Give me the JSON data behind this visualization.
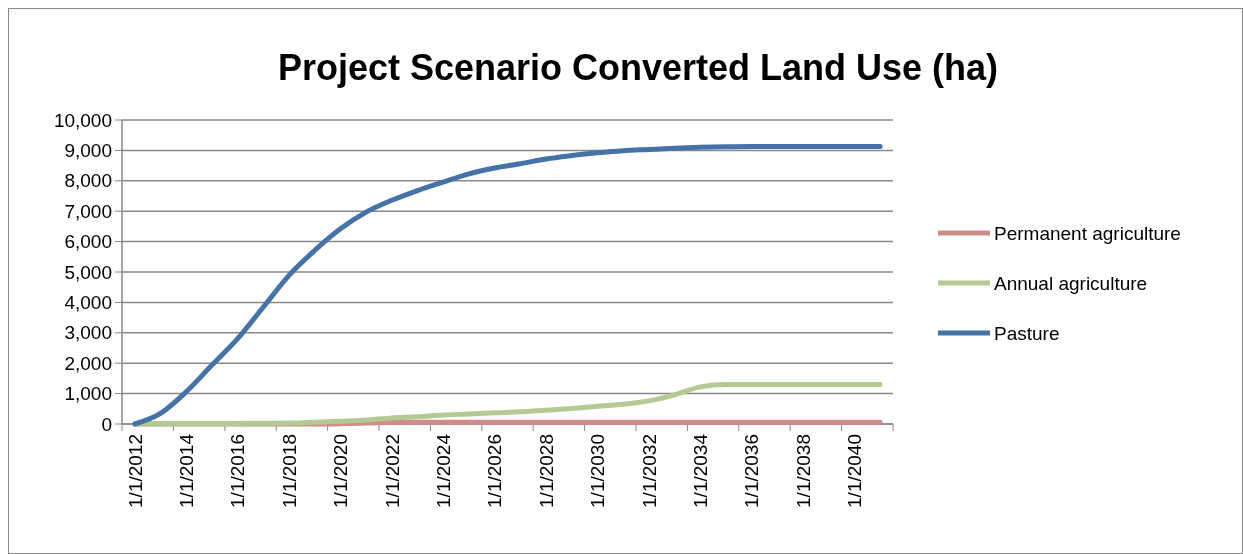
{
  "chart_data": {
    "type": "line",
    "title": "Project Scenario Converted Land Use (ha)",
    "categories": [
      "1/1/2012",
      null,
      "1/1/2014",
      null,
      "1/1/2016",
      null,
      "1/1/2018",
      null,
      "1/1/2020",
      null,
      "1/1/2022",
      null,
      "1/1/2024",
      null,
      "1/1/2026",
      null,
      "1/1/2028",
      null,
      "1/1/2030",
      null,
      "1/1/2032",
      null,
      "1/1/2034",
      null,
      "1/1/2036",
      null,
      "1/1/2038",
      null,
      "1/1/2040",
      null
    ],
    "series": [
      {
        "name": "Permanent agriculture",
        "color": "#d08b8b",
        "values": [
          0,
          0,
          0,
          0,
          0,
          0,
          0,
          0,
          10,
          30,
          50,
          60,
          60,
          60,
          60,
          60,
          60,
          60,
          60,
          60,
          60,
          60,
          60,
          60,
          60,
          60,
          60,
          60,
          60,
          60
        ]
      },
      {
        "name": "Annual agriculture",
        "color": "#b3cb92",
        "values": [
          0,
          10,
          15,
          20,
          20,
          25,
          30,
          55,
          90,
          130,
          200,
          240,
          295,
          330,
          370,
          400,
          455,
          510,
          585,
          650,
          760,
          960,
          1220,
          1300,
          1300,
          1300,
          1300,
          1300,
          1300,
          1300
        ]
      },
      {
        "name": "Pasture",
        "color": "#4572a7",
        "values": [
          0,
          350,
          1060,
          1940,
          2810,
          3850,
          4890,
          5710,
          6420,
          6970,
          7360,
          7680,
          7960,
          8230,
          8420,
          8560,
          8720,
          8830,
          8920,
          8990,
          9030,
          9070,
          9100,
          9120,
          9130,
          9130,
          9130,
          9130,
          9130,
          9130
        ]
      }
    ],
    "ylim": [
      0,
      10000
    ],
    "yticks": [
      {
        "value": 0,
        "label": "0"
      },
      {
        "value": 1000,
        "label": "1,000"
      },
      {
        "value": 2000,
        "label": "2,000"
      },
      {
        "value": 3000,
        "label": "3,000"
      },
      {
        "value": 4000,
        "label": "4,000"
      },
      {
        "value": 5000,
        "label": "5,000"
      },
      {
        "value": 6000,
        "label": "6,000"
      },
      {
        "value": 7000,
        "label": "7,000"
      },
      {
        "value": 8000,
        "label": "8,000"
      },
      {
        "value": 9000,
        "label": "9,000"
      },
      {
        "value": 10000,
        "label": "10,000"
      }
    ],
    "grid": "y",
    "legend": "right",
    "marker": "none",
    "line_style": "solid"
  }
}
